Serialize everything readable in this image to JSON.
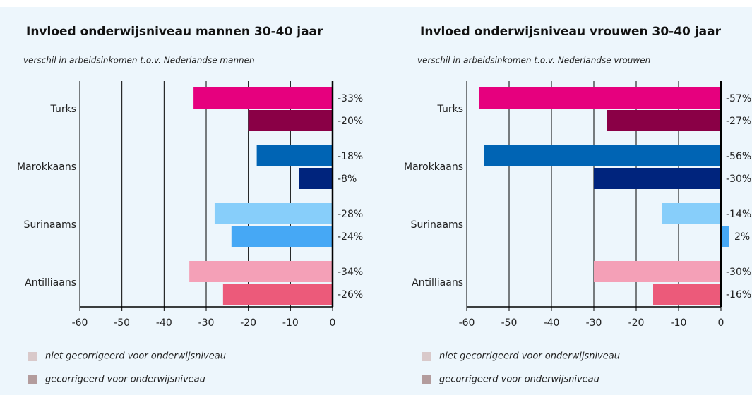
{
  "chart_data": [
    {
      "type": "bar",
      "orientation": "horizontal",
      "title": "Invloed onderwijsniveau mannen 30-40 jaar",
      "subtitle": "verschil in arbeidsinkomen t.o.v. Nederlandse mannen",
      "categories": [
        "Turks",
        "Marokkaans",
        "Surinaams",
        "Antilliaans"
      ],
      "series": [
        {
          "name": "niet gecorrigeerd voor onderwijsniveau",
          "color": "#d9c9ca",
          "colors": [
            "#e6007e",
            "#0064b4",
            "#87cefa",
            "#f4a0b7"
          ],
          "values": [
            -33,
            -18,
            -28,
            -34
          ],
          "value_labels": [
            "-33%",
            "-18%",
            "-28%",
            "-34%"
          ]
        },
        {
          "name": "gecorrigeerd voor onderwijsniveau",
          "color": "#b39c9d",
          "colors": [
            "#8a0046",
            "#00247d",
            "#46a8f5",
            "#ec5a7a"
          ],
          "values": [
            -20,
            -8,
            -24,
            -26
          ],
          "value_labels": [
            "-20%",
            "-8%",
            "-24%",
            "-26%"
          ]
        }
      ],
      "xlim": [
        -60,
        0
      ],
      "xticks": [
        -60,
        -50,
        -40,
        -30,
        -20,
        -10,
        0
      ],
      "grid": true
    },
    {
      "type": "bar",
      "orientation": "horizontal",
      "title": "Invloed onderwijsniveau vrouwen 30-40 jaar",
      "subtitle": "verschil in arbeidsinkomen t.o.v. Nederlandse vrouwen",
      "categories": [
        "Turks",
        "Marokkaans",
        "Surinaams",
        "Antilliaans"
      ],
      "series": [
        {
          "name": "niet gecorrigeerd voor onderwijsniveau",
          "color": "#d9c9ca",
          "colors": [
            "#e6007e",
            "#0064b4",
            "#87cefa",
            "#f4a0b7"
          ],
          "values": [
            -57,
            -56,
            -14,
            -30
          ],
          "value_labels": [
            "-57%",
            "-56%",
            "-14%",
            "-30%"
          ]
        },
        {
          "name": "gecorrigeerd voor onderwijsniveau",
          "color": "#b39c9d",
          "colors": [
            "#8a0046",
            "#00247d",
            "#46a8f5",
            "#ec5a7a"
          ],
          "values": [
            -27,
            -30,
            2,
            -16
          ],
          "value_labels": [
            "-27%",
            "-30%",
            "2%",
            "-16%"
          ]
        }
      ],
      "xlim": [
        -60,
        0
      ],
      "xticks": [
        -60,
        -50,
        -40,
        -30,
        -20,
        -10,
        0
      ],
      "grid": true
    }
  ]
}
